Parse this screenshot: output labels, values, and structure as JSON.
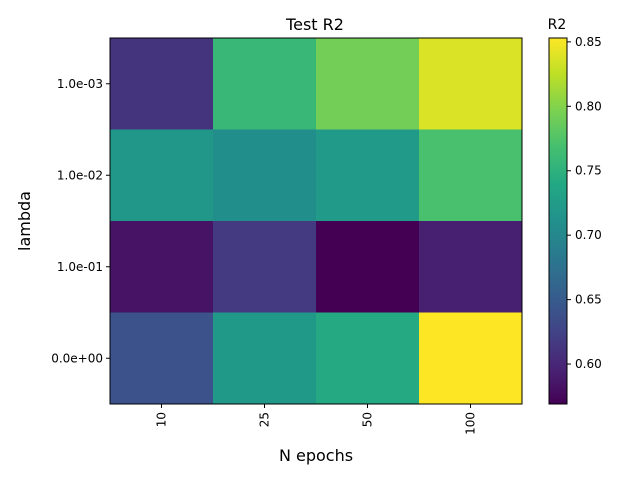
{
  "chart_data": {
    "type": "heatmap",
    "title": "Test R2",
    "xlabel": "N epochs",
    "ylabel": "lambda",
    "x_categories": [
      "10",
      "25",
      "50",
      "100"
    ],
    "y_categories": [
      "1.0e-03",
      "1.0e-02",
      "1.0e-01",
      "0.0e+00"
    ],
    "values": [
      [
        0.612,
        0.758,
        0.792,
        0.838
      ],
      [
        0.718,
        0.708,
        0.722,
        0.77
      ],
      [
        0.584,
        0.617,
        0.569,
        0.594
      ],
      [
        0.64,
        0.721,
        0.741,
        0.853
      ]
    ],
    "colorbar": {
      "label": "R2",
      "range": [
        0.569,
        0.853
      ],
      "ticks": [
        0.6,
        0.65,
        0.7,
        0.75,
        0.8,
        0.85
      ],
      "tick_labels": [
        "0.60",
        "0.65",
        "0.70",
        "0.75",
        "0.80",
        "0.85"
      ],
      "colormap": "viridis"
    },
    "grid": false
  }
}
